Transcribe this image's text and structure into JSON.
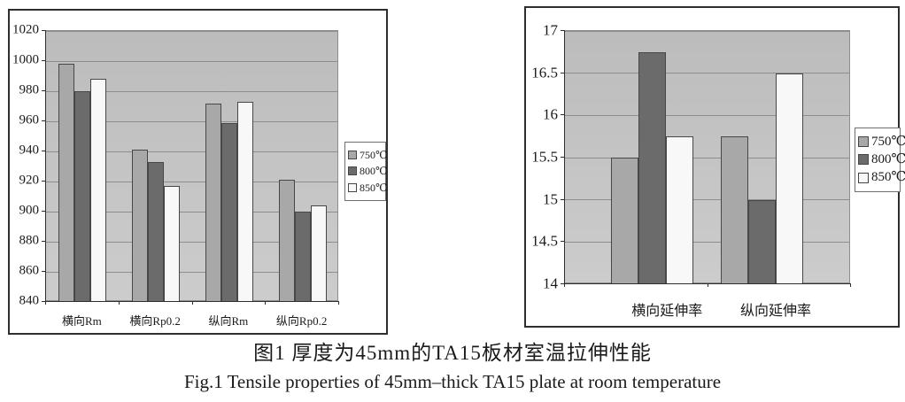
{
  "figure": {
    "caption_zh": "图1 厚度为45mm的TA15板材室温拉伸性能",
    "caption_en": "Fig.1  Tensile properties of 45mm–thick TA15 plate at room temperature"
  },
  "colors": {
    "series": [
      "#a8a8a8",
      "#6b6b6b",
      "#f8f8f8"
    ],
    "plot_bg_top": "#bcbcbc",
    "plot_bg_bottom": "#cccccc",
    "gridline": "#8e8e8e",
    "axis": "#2e2e2e",
    "text": "#1a1a1a"
  },
  "chart_data": [
    {
      "type": "bar",
      "title": "",
      "categories": [
        "横向Rm",
        "横向Rp0.2",
        "纵向Rm",
        "纵向Rp0.2"
      ],
      "series": [
        {
          "name": "750℃",
          "values": [
            998,
            941,
            972,
            921
          ]
        },
        {
          "name": "800℃",
          "values": [
            980,
            933,
            959,
            900
          ]
        },
        {
          "name": "850℃",
          "values": [
            988,
            917,
            973,
            904
          ]
        }
      ],
      "ylim": [
        840,
        1020
      ],
      "ytick_step": 20,
      "ytick_labels": [
        "840",
        "860",
        "880",
        "900",
        "920",
        "940",
        "960",
        "980",
        "1000",
        "1020"
      ],
      "grid": true,
      "legend_position": "right"
    },
    {
      "type": "bar",
      "title": "",
      "categories": [
        "横向延伸率",
        "纵向延伸率"
      ],
      "series": [
        {
          "name": "750℃",
          "values": [
            15.5,
            15.75
          ]
        },
        {
          "name": "800℃",
          "values": [
            16.75,
            15
          ]
        },
        {
          "name": "850℃",
          "values": [
            15.75,
            16.5
          ]
        }
      ],
      "ylim": [
        14,
        17
      ],
      "ytick_step": 0.5,
      "ytick_labels": [
        "14",
        "14.5",
        "15",
        "15.5",
        "16",
        "16.5",
        "17"
      ],
      "grid": true,
      "legend_position": "right"
    }
  ]
}
